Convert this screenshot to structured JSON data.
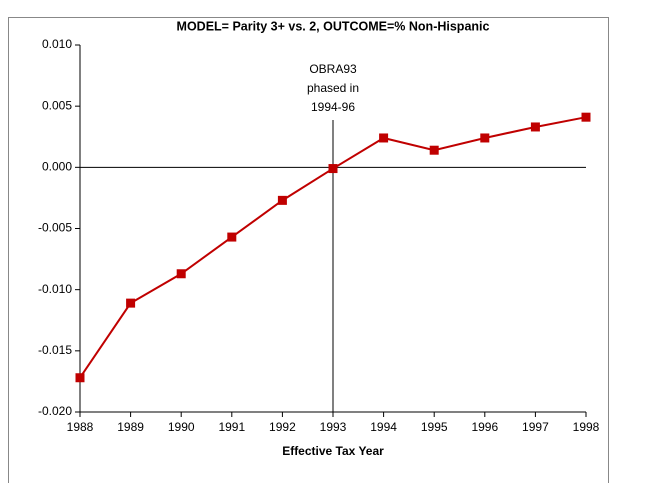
{
  "chart_data": {
    "type": "line",
    "title": "MODEL= Parity 3+ vs. 2, OUTCOME=% Non-Hispanic",
    "x_label": "Effective Tax Year",
    "x": [
      1988,
      1989,
      1990,
      1991,
      1992,
      1993,
      1994,
      1995,
      1996,
      1997,
      1998
    ],
    "series": [
      {
        "name": "Parity 3+ vs. 2",
        "color": "#c00000",
        "values": [
          -0.0172,
          -0.0111,
          -0.0087,
          -0.0057,
          -0.0027,
          -0.0001,
          0.0024,
          0.0014,
          0.0024,
          0.0033,
          0.0041
        ]
      }
    ],
    "xlim": [
      1988,
      1998
    ],
    "xticks": [
      1988,
      1989,
      1990,
      1991,
      1992,
      1993,
      1994,
      1995,
      1996,
      1997,
      1998
    ],
    "ylim": [
      -0.02,
      0.01
    ],
    "yticks": [
      {
        "value": 0.01,
        "label": "0.010"
      },
      {
        "value": 0.005,
        "label": "0.005"
      },
      {
        "value": 0,
        "label": "0.000"
      },
      {
        "value": -0.005,
        "label": "-0.005"
      },
      {
        "value": -0.01,
        "label": "-0.010"
      },
      {
        "value": -0.015,
        "label": "-0.015"
      },
      {
        "value": -0.02,
        "label": "-0.020"
      }
    ],
    "annotation": {
      "text": [
        "OBRA93",
        "phased in",
        "1994-96"
      ],
      "x": 1993
    }
  }
}
